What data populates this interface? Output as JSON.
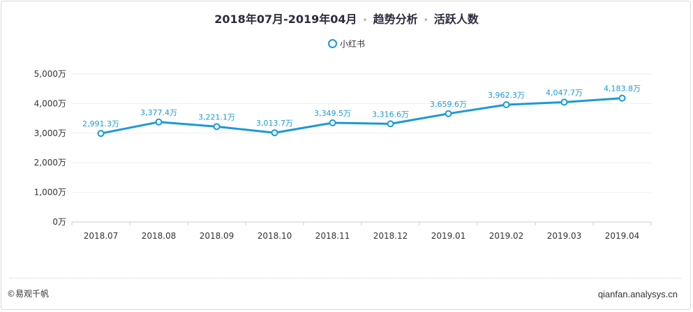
{
  "header": {
    "period": "2018年07月-2019年04月",
    "section": "趋势分析",
    "metric": "活跃人数",
    "separator": "•"
  },
  "legend": {
    "label": "小红书"
  },
  "footer": {
    "copyright": "©易观千帆",
    "source": "qianfan.analysys.cn"
  },
  "colors": {
    "series": "#1a9ad6",
    "grid": "#eeeeee",
    "axis": "#cccccc"
  },
  "chart_data": {
    "type": "line",
    "x": [
      "2018.07",
      "2018.08",
      "2018.09",
      "2018.10",
      "2018.11",
      "2018.12",
      "2019.01",
      "2019.02",
      "2019.03",
      "2019.04"
    ],
    "series": [
      {
        "name": "小红书",
        "values": [
          2991.3,
          3377.4,
          3221.1,
          3013.7,
          3349.5,
          3316.6,
          3659.6,
          3962.3,
          4047.7,
          4183.8
        ],
        "labels": [
          "2,991.3万",
          "3,377.4万",
          "3,221.1万",
          "3,013.7万",
          "3,349.5万",
          "3,316.6万",
          "3,659.6万",
          "3,962.3万",
          "4,047.7万",
          "4,183.8万"
        ]
      }
    ],
    "ylim": [
      0,
      5000
    ],
    "yticks": [
      0,
      1000,
      2000,
      3000,
      4000,
      5000
    ],
    "ytick_labels": [
      "0万",
      "1,000万",
      "2,000万",
      "3,000万",
      "4,000万",
      "5,000万"
    ],
    "grid": true,
    "legend_position": "top-center"
  }
}
